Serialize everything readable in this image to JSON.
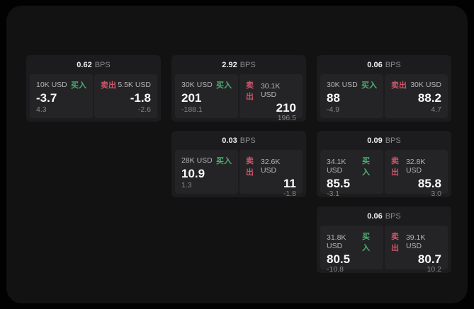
{
  "colors": {
    "green": "#4caf70",
    "red": "#cd5569"
  },
  "labels": {
    "bps": "BPS",
    "buy": "买入",
    "sell": "卖出"
  },
  "cards": [
    {
      "bps": "0.62",
      "row": 1,
      "col": 1,
      "buy": {
        "amount": "10K USD",
        "value": "-3.7",
        "sub": "4.3"
      },
      "sell": {
        "amount": "5.5K USD",
        "value": "-1.8",
        "sub": "-2.6"
      }
    },
    {
      "bps": "2.92",
      "row": 1,
      "col": 2,
      "buy": {
        "amount": "30K USD",
        "value": "201",
        "sub": "-188.1"
      },
      "sell": {
        "amount": "30.1K USD",
        "value": "210",
        "sub": "196.5"
      }
    },
    {
      "bps": "0.06",
      "row": 1,
      "col": 3,
      "buy": {
        "amount": "30K USD",
        "value": "88",
        "sub": "-4.9"
      },
      "sell": {
        "amount": "30K USD",
        "value": "88.2",
        "sub": "4.7"
      }
    },
    {
      "bps": "0.03",
      "row": 2,
      "col": 2,
      "buy": {
        "amount": "28K USD",
        "value": "10.9",
        "sub": "1.3"
      },
      "sell": {
        "amount": "32.6K USD",
        "value": "11",
        "sub": "-1.8"
      }
    },
    {
      "bps": "0.09",
      "row": 2,
      "col": 3,
      "buy": {
        "amount": "34.1K USD",
        "value": "85.5",
        "sub": "-3.1"
      },
      "sell": {
        "amount": "32.8K USD",
        "value": "85.8",
        "sub": "3.0"
      }
    },
    {
      "bps": "0.06",
      "row": 3,
      "col": 3,
      "buy": {
        "amount": "31.8K USD",
        "value": "80.5",
        "sub": "-10.8"
      },
      "sell": {
        "amount": "39.1K USD",
        "value": "80.7",
        "sub": "10.2"
      }
    }
  ]
}
